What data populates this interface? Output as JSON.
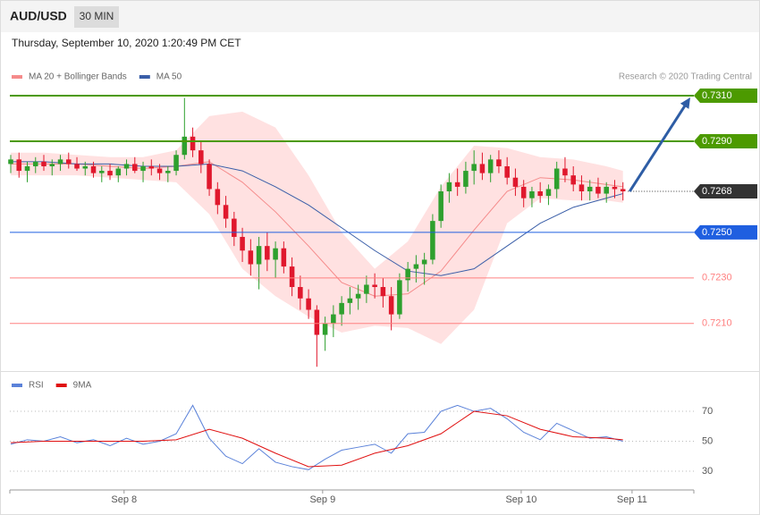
{
  "header": {
    "symbol": "AUD/USD",
    "timeframe": "30 MIN",
    "timestamp": "Thursday, September 10, 2020 1:20:49 PM CET"
  },
  "chart_data": [
    {
      "type": "candlestick",
      "annotation": "Research © 2020 Trading Central",
      "xlim": [
        0,
        83
      ],
      "ylim": [
        0.719,
        0.7315
      ],
      "candles": {
        "x": [
          0,
          1,
          2,
          3,
          4,
          5,
          6,
          7,
          8,
          9,
          10,
          11,
          12,
          13,
          14,
          15,
          16,
          17,
          18,
          19,
          20,
          21,
          22,
          23,
          24,
          25,
          26,
          27,
          28,
          29,
          30,
          31,
          32,
          33,
          34,
          35,
          36,
          37,
          38,
          39,
          40,
          41,
          42,
          43,
          44,
          45,
          46,
          47,
          48,
          49,
          50,
          51,
          52,
          53,
          54,
          55,
          56,
          57,
          58,
          59,
          60,
          61,
          62,
          63,
          64,
          65,
          66,
          67,
          68,
          69,
          70,
          71,
          72,
          73,
          74
        ],
        "open": [
          0.728,
          0.7282,
          0.7277,
          0.7279,
          0.7281,
          0.7279,
          0.728,
          0.7282,
          0.728,
          0.7278,
          0.7279,
          0.7276,
          0.7277,
          0.7275,
          0.7278,
          0.728,
          0.7277,
          0.7279,
          0.7278,
          0.7276,
          0.7277,
          0.7284,
          0.7292,
          0.7286,
          0.728,
          0.7269,
          0.7262,
          0.7256,
          0.7248,
          0.7242,
          0.7236,
          0.7244,
          0.7238,
          0.7243,
          0.7235,
          0.7226,
          0.7221,
          0.7216,
          0.7205,
          0.721,
          0.7214,
          0.7219,
          0.7221,
          0.7223,
          0.7227,
          0.7226,
          0.7222,
          0.7214,
          0.7229,
          0.7234,
          0.7236,
          0.7238,
          0.7255,
          0.7268,
          0.7272,
          0.727,
          0.7277,
          0.728,
          0.7276,
          0.7282,
          0.7279,
          0.7274,
          0.727,
          0.7265,
          0.7268,
          0.7266,
          0.7269,
          0.7278,
          0.7275,
          0.7271,
          0.7268,
          0.727,
          0.7267,
          0.727,
          0.7269
        ],
        "high": [
          0.7284,
          0.7285,
          0.7281,
          0.7283,
          0.7284,
          0.7282,
          0.7284,
          0.7285,
          0.7283,
          0.7281,
          0.7281,
          0.7279,
          0.728,
          0.7279,
          0.7282,
          0.7283,
          0.7281,
          0.7282,
          0.728,
          0.7279,
          0.7286,
          0.7309,
          0.7296,
          0.729,
          0.7282,
          0.7272,
          0.7266,
          0.7259,
          0.7252,
          0.7247,
          0.7248,
          0.725,
          0.7246,
          0.7246,
          0.7239,
          0.7231,
          0.7225,
          0.7218,
          0.7213,
          0.7218,
          0.7222,
          0.7226,
          0.7227,
          0.7231,
          0.7232,
          0.723,
          0.7226,
          0.7232,
          0.7237,
          0.724,
          0.7241,
          0.7258,
          0.7271,
          0.7276,
          0.7278,
          0.7281,
          0.7286,
          0.7285,
          0.7284,
          0.7286,
          0.7283,
          0.7278,
          0.7273,
          0.727,
          0.7272,
          0.7271,
          0.7281,
          0.7283,
          0.7279,
          0.7275,
          0.7273,
          0.7274,
          0.7272,
          0.7273,
          0.7272
        ],
        "low": [
          0.7276,
          0.7274,
          0.7272,
          0.7276,
          0.7277,
          0.7275,
          0.7277,
          0.7278,
          0.7277,
          0.7275,
          0.7274,
          0.7272,
          0.7273,
          0.7272,
          0.7275,
          0.7276,
          0.7272,
          0.7275,
          0.7273,
          0.7272,
          0.7275,
          0.7282,
          0.7283,
          0.7276,
          0.7266,
          0.7258,
          0.7252,
          0.7244,
          0.7237,
          0.7231,
          0.7225,
          0.7233,
          0.723,
          0.7232,
          0.7222,
          0.7216,
          0.7212,
          0.7191,
          0.7198,
          0.7204,
          0.7209,
          0.7214,
          0.7216,
          0.7219,
          0.7221,
          0.7217,
          0.7207,
          0.7212,
          0.7224,
          0.7228,
          0.7227,
          0.7236,
          0.7252,
          0.7263,
          0.7266,
          0.7267,
          0.7271,
          0.7273,
          0.7272,
          0.7276,
          0.7271,
          0.7266,
          0.7261,
          0.7261,
          0.7263,
          0.7262,
          0.7265,
          0.7272,
          0.7268,
          0.7264,
          0.7264,
          0.7265,
          0.7263,
          0.7265,
          0.7264
        ],
        "close": [
          0.7282,
          0.7277,
          0.7279,
          0.7281,
          0.7279,
          0.728,
          0.7282,
          0.728,
          0.7278,
          0.7279,
          0.7276,
          0.7277,
          0.7275,
          0.7278,
          0.728,
          0.7277,
          0.7279,
          0.7278,
          0.7276,
          0.7277,
          0.7284,
          0.7292,
          0.7286,
          0.728,
          0.7269,
          0.7262,
          0.7256,
          0.7248,
          0.7242,
          0.7236,
          0.7244,
          0.7238,
          0.7243,
          0.7235,
          0.7226,
          0.7221,
          0.7216,
          0.7205,
          0.721,
          0.7214,
          0.7219,
          0.7221,
          0.7223,
          0.7227,
          0.7226,
          0.7222,
          0.7214,
          0.7229,
          0.7234,
          0.7236,
          0.7238,
          0.7255,
          0.7268,
          0.7272,
          0.727,
          0.7277,
          0.728,
          0.7276,
          0.7282,
          0.7279,
          0.7274,
          0.727,
          0.7265,
          0.7268,
          0.7266,
          0.7269,
          0.7278,
          0.7275,
          0.7271,
          0.7268,
          0.727,
          0.7267,
          0.727,
          0.7269,
          0.7268
        ],
        "up_color": "#2ea02e",
        "down_color": "#e0182d"
      },
      "series": [
        {
          "name": "MA 20 + Bollinger Bands",
          "kind": "band",
          "color": "#f58b8b",
          "band_color": "#ffe1e1",
          "x": [
            0,
            4,
            8,
            12,
            16,
            20,
            24,
            28,
            32,
            36,
            40,
            44,
            48,
            52,
            56,
            60,
            64,
            68,
            72,
            74
          ],
          "values": [
            0.728,
            0.728,
            0.728,
            0.7279,
            0.7278,
            0.7279,
            0.7281,
            0.7272,
            0.7259,
            0.7244,
            0.7228,
            0.7222,
            0.7223,
            0.7233,
            0.7251,
            0.7268,
            0.7274,
            0.7273,
            0.7271,
            0.727
          ],
          "upper": [
            0.7285,
            0.7285,
            0.7284,
            0.7283,
            0.7283,
            0.7286,
            0.7301,
            0.7303,
            0.7296,
            0.7275,
            0.725,
            0.7234,
            0.7246,
            0.727,
            0.7288,
            0.7287,
            0.7283,
            0.7282,
            0.7279,
            0.7277
          ],
          "lower": [
            0.7275,
            0.7275,
            0.7275,
            0.7274,
            0.7273,
            0.7272,
            0.7258,
            0.7234,
            0.7222,
            0.7213,
            0.7206,
            0.7209,
            0.7208,
            0.7201,
            0.7216,
            0.7254,
            0.7265,
            0.7264,
            0.7264,
            0.7263
          ]
        },
        {
          "name": "MA 50",
          "kind": "line",
          "color": "#3a5ea8",
          "x": [
            0,
            4,
            8,
            12,
            16,
            20,
            24,
            28,
            32,
            36,
            40,
            44,
            48,
            52,
            56,
            60,
            64,
            68,
            72,
            74
          ],
          "values": [
            0.7281,
            0.7281,
            0.728,
            0.728,
            0.7279,
            0.7279,
            0.728,
            0.7277,
            0.727,
            0.7262,
            0.7252,
            0.7242,
            0.7233,
            0.7231,
            0.7234,
            0.7244,
            0.7254,
            0.7261,
            0.7265,
            0.7267
          ]
        }
      ],
      "levels": [
        {
          "value": 0.731,
          "label": "0.7310",
          "color": "#4c9a00",
          "style": "tag"
        },
        {
          "value": 0.729,
          "label": "0.7290",
          "color": "#4c9a00",
          "style": "tag"
        },
        {
          "value": 0.7268,
          "label": "0.7268",
          "color": "#333333",
          "style": "current"
        },
        {
          "value": 0.725,
          "label": "0.7250",
          "color": "#1f5fe0",
          "style": "tag"
        },
        {
          "value": 0.723,
          "label": "0.7230",
          "color": "#ff8080",
          "style": "text"
        },
        {
          "value": 0.721,
          "label": "0.7210",
          "color": "#ff8080",
          "style": "text"
        }
      ]
    },
    {
      "type": "line",
      "xlim": [
        0,
        83
      ],
      "ylim": [
        24,
        76
      ],
      "yticks": [
        30,
        50,
        70
      ],
      "grid": true,
      "xticks": [
        {
          "value": 13.7,
          "label": "Sep 8"
        },
        {
          "value": 37.7,
          "label": "Sep 9"
        },
        {
          "value": 61.7,
          "label": "Sep 10"
        },
        {
          "value": 75.1,
          "label": "Sep 11"
        }
      ],
      "series": [
        {
          "name": "RSI",
          "color": "#5b82d9",
          "x": [
            0,
            2,
            4,
            6,
            8,
            10,
            12,
            14,
            16,
            18,
            20,
            22,
            24,
            26,
            28,
            30,
            32,
            34,
            36,
            38,
            40,
            42,
            44,
            46,
            48,
            50,
            52,
            54,
            56,
            58,
            60,
            62,
            64,
            66,
            68,
            70,
            72,
            74
          ],
          "values": [
            48,
            51,
            50,
            53,
            49,
            51,
            47,
            52,
            48,
            50,
            55,
            74,
            52,
            40,
            35,
            45,
            36,
            33,
            31,
            38,
            44,
            46,
            48,
            42,
            55,
            56,
            70,
            74,
            70,
            72,
            65,
            56,
            51,
            62,
            57,
            52,
            53,
            50
          ]
        },
        {
          "name": "9MA",
          "color": "#e01010",
          "x": [
            0,
            4,
            8,
            12,
            16,
            20,
            24,
            28,
            32,
            36,
            40,
            44,
            48,
            52,
            56,
            60,
            64,
            68,
            72,
            74
          ],
          "values": [
            49,
            50,
            50,
            50,
            50,
            51,
            58,
            52,
            42,
            33,
            34,
            42,
            47,
            55,
            70,
            67,
            58,
            53,
            52,
            51
          ]
        }
      ]
    }
  ]
}
